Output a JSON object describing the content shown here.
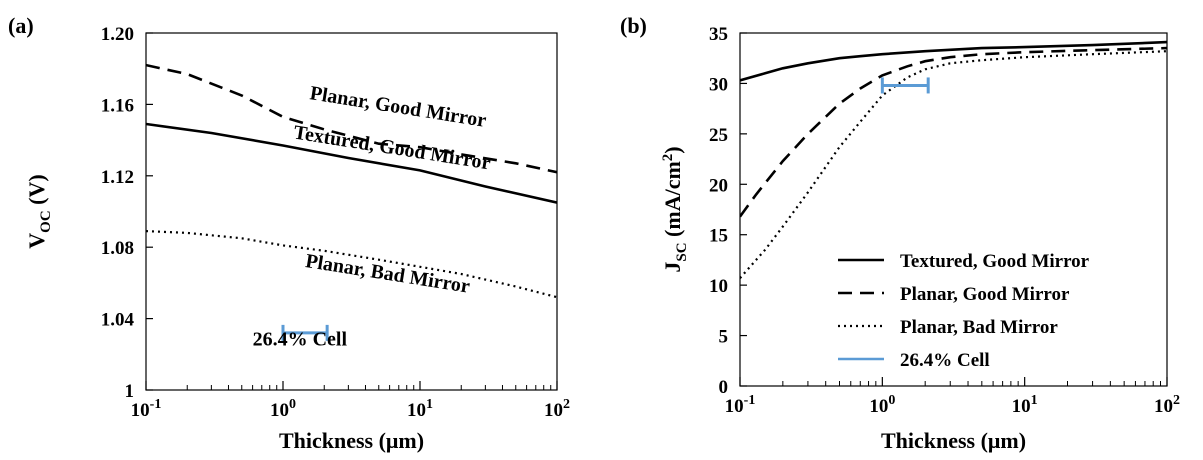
{
  "chart_data": [
    {
      "panel": "(a)",
      "type": "line",
      "x_scale": "log",
      "xlim": [
        0.1,
        100
      ],
      "ylim": [
        1.0,
        1.2
      ],
      "xlabel": "Thickness (μm)",
      "ylabel": {
        "main": "V",
        "sub": "OC",
        "unit": " (V)"
      },
      "x_ticks": [
        {
          "value": 0.1,
          "base": "10",
          "exp": "-1"
        },
        {
          "value": 1,
          "base": "10",
          "exp": "0"
        },
        {
          "value": 10,
          "base": "10",
          "exp": "1"
        },
        {
          "value": 100,
          "base": "10",
          "exp": "2"
        }
      ],
      "y_ticks": [
        {
          "value": 1.0,
          "label": "1"
        },
        {
          "value": 1.04,
          "label": "1.04"
        },
        {
          "value": 1.08,
          "label": "1.08"
        },
        {
          "value": 1.12,
          "label": "1.12"
        },
        {
          "value": 1.16,
          "label": "1.16"
        },
        {
          "value": 1.2,
          "label": "1.20"
        }
      ],
      "grid": false,
      "series": [
        {
          "name": "Planar, Good Mirror",
          "style": "dashed",
          "x": [
            0.1,
            0.2,
            0.5,
            1,
            2,
            5,
            10,
            20,
            50,
            100
          ],
          "y": [
            1.182,
            1.177,
            1.165,
            1.153,
            1.146,
            1.138,
            1.136,
            1.132,
            1.127,
            1.122
          ]
        },
        {
          "name": "Textured, Good Mirror",
          "style": "solid",
          "x": [
            0.1,
            0.3,
            1,
            3,
            10,
            30,
            100
          ],
          "y": [
            1.149,
            1.144,
            1.137,
            1.13,
            1.123,
            1.114,
            1.105
          ]
        },
        {
          "name": "Planar, Bad Mirror",
          "style": "dotted",
          "x": [
            0.1,
            0.2,
            0.5,
            1,
            2,
            5,
            10,
            20,
            50,
            100
          ],
          "y": [
            1.089,
            1.088,
            1.085,
            1.081,
            1.078,
            1.073,
            1.069,
            1.065,
            1.058,
            1.052
          ]
        }
      ],
      "cell_range": {
        "name": "26.4% Cell",
        "x": [
          1,
          2.1
        ],
        "y": 1.032
      },
      "annotations": [
        {
          "text": "Planar, Good Mirror",
          "x": 1.55,
          "y": 1.163,
          "rotate": 9
        },
        {
          "text": "Textured, Good Mirror",
          "x": 1.18,
          "y": 1.141,
          "rotate": 9
        },
        {
          "text": "Planar, Bad Mirror",
          "x": 1.44,
          "y": 1.069,
          "rotate": 9
        },
        {
          "text": "26.4% Cell",
          "x": 0.6,
          "y": 1.025,
          "rotate": 0
        }
      ]
    },
    {
      "panel": "(b)",
      "type": "line",
      "x_scale": "log",
      "xlim": [
        0.1,
        100
      ],
      "ylim": [
        0,
        35
      ],
      "xlabel": "Thickness (μm)",
      "ylabel": {
        "main": "J",
        "sub": "SC",
        "unit": " (mA/cm",
        "sup": "2",
        "close": ")"
      },
      "x_ticks": [
        {
          "value": 0.1,
          "base": "10",
          "exp": "-1"
        },
        {
          "value": 1,
          "base": "10",
          "exp": "0"
        },
        {
          "value": 10,
          "base": "10",
          "exp": "1"
        },
        {
          "value": 100,
          "base": "10",
          "exp": "2"
        }
      ],
      "y_ticks": [
        {
          "value": 0,
          "label": "0"
        },
        {
          "value": 5,
          "label": "5"
        },
        {
          "value": 10,
          "label": "10"
        },
        {
          "value": 15,
          "label": "15"
        },
        {
          "value": 20,
          "label": "20"
        },
        {
          "value": 25,
          "label": "25"
        },
        {
          "value": 30,
          "label": "30"
        },
        {
          "value": 35,
          "label": "35"
        }
      ],
      "grid": false,
      "legend": "bottom-right",
      "series": [
        {
          "name": "Textured, Good Mirror",
          "style": "solid",
          "x": [
            0.1,
            0.15,
            0.2,
            0.3,
            0.5,
            0.7,
            1,
            2,
            5,
            10,
            30,
            100
          ],
          "y": [
            30.3,
            31.0,
            31.5,
            32.0,
            32.5,
            32.7,
            32.9,
            33.2,
            33.5,
            33.6,
            33.8,
            34.1
          ]
        },
        {
          "name": "Planar, Good Mirror",
          "style": "dashed",
          "x": [
            0.1,
            0.13,
            0.2,
            0.3,
            0.5,
            0.7,
            1,
            1.5,
            2,
            3,
            5,
            10,
            30,
            100
          ],
          "y": [
            16.8,
            19.0,
            22.3,
            25.0,
            28.0,
            29.5,
            30.8,
            31.7,
            32.2,
            32.6,
            32.9,
            33.1,
            33.3,
            33.5
          ]
        },
        {
          "name": "Planar, Bad Mirror",
          "style": "dotted",
          "x": [
            0.1,
            0.15,
            0.2,
            0.3,
            0.5,
            0.7,
            1,
            1.5,
            2,
            3,
            5,
            10,
            30,
            100
          ],
          "y": [
            10.7,
            13.5,
            15.8,
            19.2,
            23.7,
            26.2,
            28.8,
            30.6,
            31.4,
            32.0,
            32.3,
            32.6,
            32.9,
            33.2
          ]
        }
      ],
      "cell_range": {
        "name": "26.4% Cell",
        "x": [
          1.0,
          2.1
        ],
        "y": 29.8
      },
      "colors": {
        "cell": "#5b9bd5",
        "lines": "#000000"
      }
    }
  ]
}
